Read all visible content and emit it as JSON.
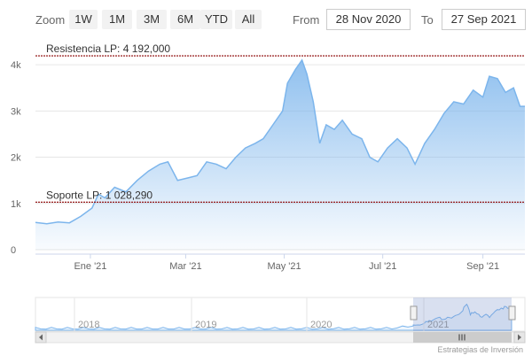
{
  "toolbar": {
    "zoom_label": "Zoom",
    "buttons": [
      "1W",
      "1M",
      "3M",
      "6M",
      "YTD",
      "All"
    ],
    "from_label": "From",
    "from_value": "28 Nov 2020",
    "to_label": "To",
    "to_value": "27 Sep 2021"
  },
  "navigator": {
    "years": [
      "2018",
      "2019",
      "2020",
      "2021"
    ]
  },
  "credit": "Estrategias de Inversión",
  "colors": {
    "line": "#7cb5ec",
    "plot_line": "#8b0000"
  },
  "chart_data": {
    "type": "area",
    "y_ticks": [
      "0",
      "1k",
      "2k",
      "3k",
      "4k"
    ],
    "ylim": [
      0,
      4500
    ],
    "x_ticks": [
      "Ene '21",
      "Mar '21",
      "May '21",
      "Jul '21",
      "Sep '21"
    ],
    "xlim": [
      "2020-11-28",
      "2021-09-27"
    ],
    "plot_lines": [
      {
        "label": "Resistencia LP: 4 192,000",
        "value": 4192
      },
      {
        "label": "Soporte LP: 1 028,290",
        "value": 1028.29
      }
    ],
    "series": [
      {
        "points": [
          [
            "2020-11-28",
            590
          ],
          [
            "2020-12-05",
            560
          ],
          [
            "2020-12-12",
            600
          ],
          [
            "2020-12-19",
            580
          ],
          [
            "2020-12-26",
            720
          ],
          [
            "2021-01-02",
            900
          ],
          [
            "2021-01-06",
            1200
          ],
          [
            "2021-01-10",
            1120
          ],
          [
            "2021-01-16",
            1350
          ],
          [
            "2021-01-23",
            1250
          ],
          [
            "2021-01-30",
            1500
          ],
          [
            "2021-02-06",
            1700
          ],
          [
            "2021-02-13",
            1850
          ],
          [
            "2021-02-18",
            1900
          ],
          [
            "2021-02-24",
            1500
          ],
          [
            "2021-03-02",
            1550
          ],
          [
            "2021-03-08",
            1600
          ],
          [
            "2021-03-14",
            1900
          ],
          [
            "2021-03-20",
            1850
          ],
          [
            "2021-03-26",
            1750
          ],
          [
            "2021-04-01",
            2000
          ],
          [
            "2021-04-07",
            2200
          ],
          [
            "2021-04-13",
            2300
          ],
          [
            "2021-04-18",
            2400
          ],
          [
            "2021-04-24",
            2700
          ],
          [
            "2021-04-30",
            3000
          ],
          [
            "2021-05-03",
            3600
          ],
          [
            "2021-05-08",
            3900
          ],
          [
            "2021-05-12",
            4100
          ],
          [
            "2021-05-15",
            3800
          ],
          [
            "2021-05-19",
            3200
          ],
          [
            "2021-05-23",
            2300
          ],
          [
            "2021-05-27",
            2700
          ],
          [
            "2021-06-01",
            2600
          ],
          [
            "2021-06-06",
            2800
          ],
          [
            "2021-06-12",
            2500
          ],
          [
            "2021-06-18",
            2400
          ],
          [
            "2021-06-23",
            2000
          ],
          [
            "2021-06-28",
            1900
          ],
          [
            "2021-07-04",
            2200
          ],
          [
            "2021-07-10",
            2400
          ],
          [
            "2021-07-16",
            2200
          ],
          [
            "2021-07-21",
            1850
          ],
          [
            "2021-07-27",
            2300
          ],
          [
            "2021-08-02",
            2600
          ],
          [
            "2021-08-08",
            2950
          ],
          [
            "2021-08-14",
            3200
          ],
          [
            "2021-08-20",
            3150
          ],
          [
            "2021-08-26",
            3450
          ],
          [
            "2021-09-01",
            3300
          ],
          [
            "2021-09-05",
            3750
          ],
          [
            "2021-09-10",
            3700
          ],
          [
            "2021-09-15",
            3400
          ],
          [
            "2021-09-20",
            3500
          ],
          [
            "2021-09-24",
            3100
          ],
          [
            "2021-09-27",
            3100
          ]
        ]
      }
    ]
  }
}
